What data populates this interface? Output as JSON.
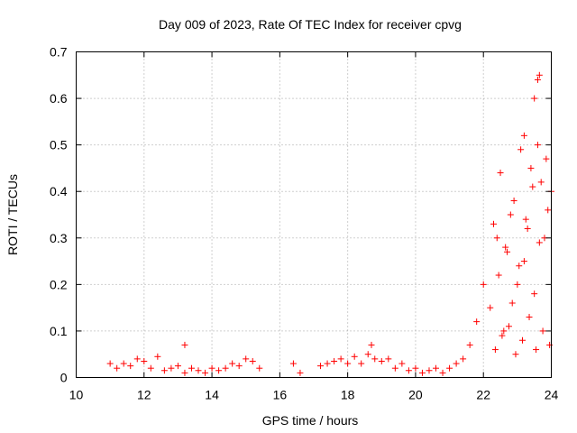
{
  "chart_data": {
    "type": "scatter",
    "title": "Day 009 of 2023, Rate Of TEC Index for receiver cpvg",
    "xlabel": "GPS time / hours",
    "ylabel": "ROTI / TECUs",
    "xlim": [
      10,
      24
    ],
    "ylim": [
      0,
      0.7
    ],
    "xticks": [
      "10",
      "12",
      "14",
      "16",
      "18",
      "20",
      "22",
      "24"
    ],
    "yticks": [
      "0",
      "0.1",
      "0.2",
      "0.3",
      "0.4",
      "0.5",
      "0.6",
      "0.7"
    ],
    "grid": true,
    "marker": "plus",
    "color": "#ff0000",
    "series": [
      {
        "x": [
          11.0,
          11.2,
          11.4,
          11.6,
          11.8,
          12.0,
          12.2,
          12.4,
          12.6,
          12.8,
          13.0,
          13.2,
          13.4,
          13.6,
          13.8,
          14.0,
          14.2,
          14.4,
          14.6,
          14.8,
          15.0,
          15.2,
          15.4,
          16.4,
          16.6,
          17.2,
          17.4,
          17.6,
          17.8,
          18.0,
          18.2,
          18.4,
          18.6,
          18.8,
          19.0,
          19.2,
          19.4,
          19.6,
          19.8,
          20.0,
          20.2,
          20.4,
          20.6,
          20.8,
          21.0,
          21.2,
          21.4,
          21.6,
          21.8,
          22.0,
          22.2,
          22.4,
          22.6,
          22.8,
          23.0,
          23.2,
          23.4,
          23.6,
          23.8,
          24.0,
          22.3,
          22.5,
          22.7,
          22.9,
          23.1,
          23.3,
          23.5,
          23.7,
          23.9,
          22.35,
          22.55,
          22.75,
          22.95,
          23.15,
          23.35,
          23.55,
          23.75,
          23.95,
          22.45,
          22.65,
          22.85,
          23.05,
          23.25,
          23.45,
          23.65,
          23.85,
          23.2,
          23.6,
          23.65,
          23.5,
          13.2,
          18.7
        ],
        "values": [
          0.03,
          0.02,
          0.03,
          0.025,
          0.04,
          0.035,
          0.02,
          0.045,
          0.015,
          0.02,
          0.025,
          0.01,
          0.02,
          0.015,
          0.01,
          0.02,
          0.015,
          0.02,
          0.03,
          0.025,
          0.04,
          0.035,
          0.02,
          0.03,
          0.01,
          0.025,
          0.03,
          0.035,
          0.04,
          0.03,
          0.045,
          0.03,
          0.05,
          0.04,
          0.035,
          0.04,
          0.02,
          0.03,
          0.015,
          0.02,
          0.01,
          0.015,
          0.02,
          0.01,
          0.02,
          0.03,
          0.04,
          0.07,
          0.12,
          0.2,
          0.15,
          0.3,
          0.1,
          0.35,
          0.2,
          0.25,
          0.45,
          0.5,
          0.3,
          0.4,
          0.33,
          0.44,
          0.27,
          0.38,
          0.49,
          0.32,
          0.18,
          0.42,
          0.36,
          0.06,
          0.09,
          0.11,
          0.05,
          0.08,
          0.13,
          0.06,
          0.1,
          0.07,
          0.22,
          0.28,
          0.16,
          0.24,
          0.34,
          0.41,
          0.29,
          0.47,
          0.52,
          0.64,
          0.65,
          0.6,
          0.07,
          0.07
        ]
      }
    ]
  }
}
